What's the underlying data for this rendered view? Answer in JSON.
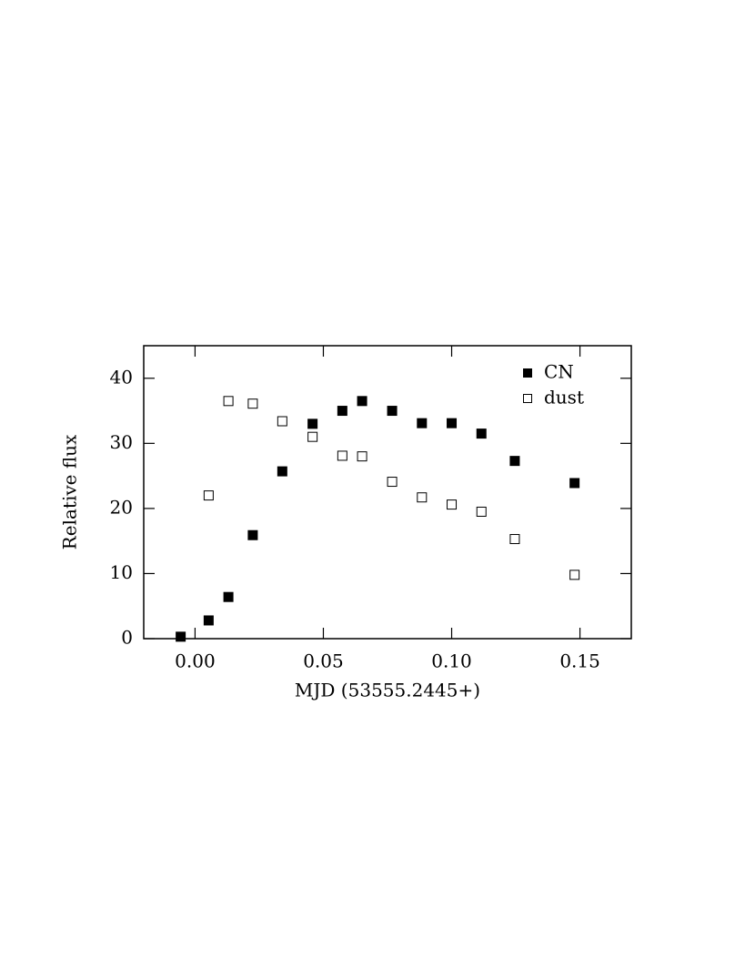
{
  "chart_data": {
    "type": "scatter",
    "x_label": "MJD (53555.2445+)",
    "y_label": "Relative flux",
    "xlim": [
      -0.02,
      0.17
    ],
    "ylim": [
      0,
      45
    ],
    "xticks": [
      {
        "value": 0,
        "label": "0.00"
      },
      {
        "value": 0.05,
        "label": "0.05"
      },
      {
        "value": 0.1,
        "label": "0.10"
      },
      {
        "value": 0.15,
        "label": "0.15"
      }
    ],
    "yticks": [
      0,
      10,
      20,
      30,
      40
    ],
    "legend": "upper right",
    "series": [
      {
        "name": "CN",
        "color": "#000000",
        "filled": true,
        "x": [
          -0.0056,
          0.0053,
          0.013,
          0.0225,
          0.034,
          0.0458,
          0.0574,
          0.0651,
          0.0768,
          0.0884,
          0.1,
          0.1116,
          0.1246,
          0.1479
        ],
        "values": [
          0.3,
          2.8,
          6.4,
          15.9,
          25.7,
          33.0,
          35.0,
          36.5,
          35.0,
          33.1,
          33.1,
          31.5,
          27.3,
          23.9
        ]
      },
      {
        "name": "dust",
        "color": "#000000",
        "filled": false,
        "x": [
          0.0053,
          0.013,
          0.0225,
          0.034,
          0.0458,
          0.0574,
          0.0651,
          0.0768,
          0.0884,
          0.1,
          0.1116,
          0.1246,
          0.1479
        ],
        "values": [
          22.0,
          36.5,
          36.1,
          33.4,
          31.0,
          28.1,
          28.0,
          24.1,
          21.7,
          20.6,
          19.5,
          15.3,
          9.8
        ]
      }
    ]
  }
}
